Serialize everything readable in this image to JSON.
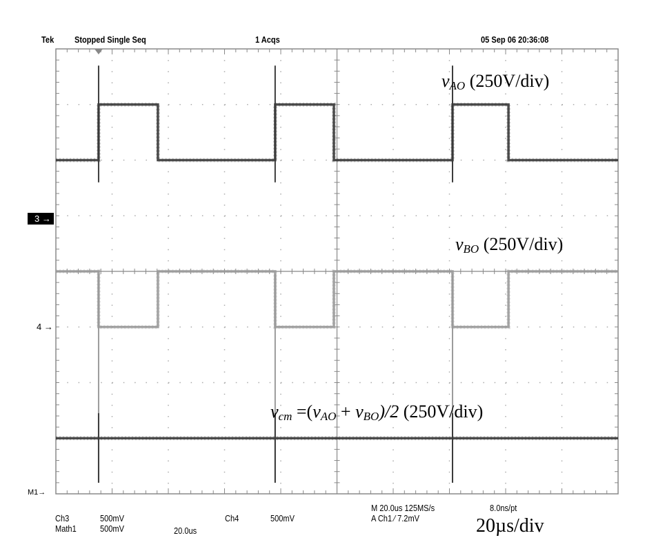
{
  "header": {
    "brand": "Tek",
    "status": "Stopped  Single Seq",
    "acquisitions": "1 Acqs",
    "datetime": "05 Sep 06 20:36:08"
  },
  "footer": {
    "ch3": "Ch3",
    "ch3_scale": "500mV",
    "math1": "Math1",
    "math1_scale": "500mV",
    "math1_time": "20.0us",
    "ch4": "Ch4",
    "ch4_scale": "500mV",
    "timebase": "M 20.0us 125MS/s",
    "resolution": "8.0ns/pt",
    "trigger": "A  Ch1  ∕  7.2mV"
  },
  "markers": {
    "ch3": "3",
    "ch4": "4",
    "math1": "M1"
  },
  "annotations": {
    "vao_symbol": "v",
    "vao_sub": "AO",
    "vao_scale": " (250V/div)",
    "vbo_symbol": "v",
    "vbo_sub": "BO",
    "vbo_scale": " (250V/div)",
    "vcm_symbol": "v",
    "vcm_sub": "cm",
    "vcm_eq": " =(",
    "vcm_v1": "v",
    "vcm_sub1": "AO",
    "vcm_plus": " + ",
    "vcm_v2": "v",
    "vcm_sub2": "BO",
    "vcm_tail": ")/2",
    "vcm_scale": "  (250V/div)",
    "time_scale": "20µs/div"
  },
  "chart_data": {
    "type": "line",
    "xlabel": "",
    "ylabel": "",
    "xlim_us": [
      0,
      200
    ],
    "x_divisions": 10,
    "y_divisions": 8,
    "volts_per_div": 250,
    "grid": true,
    "trigger_time_us": 15.2,
    "series": [
      {
        "name": "vAO",
        "color": "#3a3a3a",
        "ground_div": 1.0,
        "points_us_V": [
          [
            0,
            250
          ],
          [
            15.2,
            250
          ],
          [
            15.2,
            500
          ],
          [
            36.3,
            500
          ],
          [
            36.3,
            250
          ],
          [
            78.0,
            250
          ],
          [
            78.0,
            500
          ],
          [
            98.9,
            500
          ],
          [
            98.9,
            250
          ],
          [
            141.1,
            250
          ],
          [
            141.1,
            500
          ],
          [
            161.0,
            500
          ],
          [
            161.0,
            250
          ],
          [
            200,
            250
          ]
        ]
      },
      {
        "name": "vBO",
        "color": "#9a9a9a",
        "ground_div": -1.0,
        "points_us_V": [
          [
            0,
            250
          ],
          [
            15.2,
            250
          ],
          [
            15.2,
            0
          ],
          [
            36.3,
            0
          ],
          [
            36.3,
            250
          ],
          [
            78.0,
            250
          ],
          [
            78.0,
            0
          ],
          [
            98.9,
            0
          ],
          [
            98.9,
            250
          ],
          [
            141.1,
            250
          ],
          [
            141.1,
            0
          ],
          [
            161.0,
            0
          ],
          [
            161.0,
            250
          ],
          [
            200,
            250
          ]
        ]
      },
      {
        "name": "vcm",
        "color": "#3a3a3a",
        "ground_div": -4.0,
        "points_us_V": [
          [
            0,
            250
          ],
          [
            200,
            250
          ]
        ]
      }
    ]
  }
}
